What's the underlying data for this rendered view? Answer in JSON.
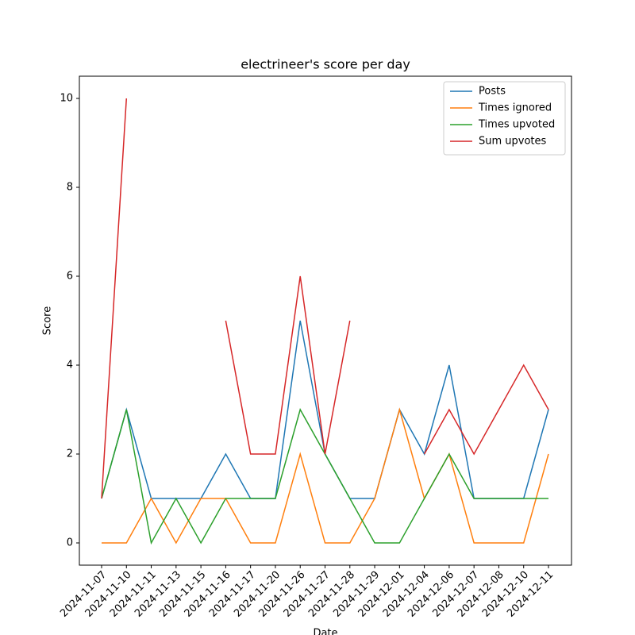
{
  "chart_data": {
    "type": "line",
    "title": "electrineer's score per day",
    "x_label": "Date",
    "y_label": "Score",
    "categories": [
      "2024-11-07",
      "2024-11-10",
      "2024-11-11",
      "2024-11-13",
      "2024-11-15",
      "2024-11-16",
      "2024-11-17",
      "2024-11-20",
      "2024-11-26",
      "2024-11-27",
      "2024-11-28",
      "2024-11-29",
      "2024-12-01",
      "2024-12-04",
      "2024-12-06",
      "2024-12-07",
      "2024-12-08",
      "2024-12-10",
      "2024-12-11"
    ],
    "series": [
      {
        "name": "Posts",
        "color": "#1f77b4",
        "values": [
          1,
          3,
          1,
          1,
          1,
          2,
          1,
          1,
          5,
          2,
          1,
          1,
          3,
          2,
          4,
          1,
          1,
          1,
          3
        ]
      },
      {
        "name": "Times ignored",
        "color": "#ff7f0e",
        "values": [
          0,
          0,
          1,
          0,
          1,
          1,
          0,
          0,
          2,
          0,
          0,
          1,
          3,
          1,
          2,
          0,
          0,
          0,
          2
        ]
      },
      {
        "name": "Times upvoted",
        "color": "#2ca02c",
        "values": [
          1,
          3,
          0,
          1,
          0,
          1,
          1,
          1,
          3,
          2,
          1,
          0,
          0,
          1,
          2,
          1,
          1,
          1,
          1
        ]
      },
      {
        "name": "Sum upvotes",
        "color": "#d62728",
        "values": [
          1,
          10,
          null,
          null,
          null,
          5,
          2,
          2,
          6,
          2,
          5,
          null,
          null,
          2,
          3,
          2,
          3,
          4,
          3
        ]
      }
    ],
    "ylim": [
      -0.5,
      10.5
    ],
    "yticks": [
      0,
      2,
      4,
      6,
      8,
      10
    ],
    "grid": false,
    "legend": "upper right"
  }
}
